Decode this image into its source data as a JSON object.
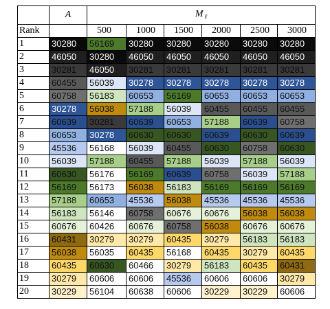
{
  "header": {
    "rank_label": "Rank",
    "col_a": "A",
    "col_m": "M",
    "col_m_sub": "ℓ",
    "levels": [
      "500",
      "1000",
      "1500",
      "2000",
      "2500",
      "3000"
    ]
  },
  "colors": {
    "30280": {
      "bg": "#0b0b0b",
      "fg": "#ffffff"
    },
    "46050": {
      "bg": "#1f1f1f",
      "fg": "#ffffff"
    },
    "30281": {
      "bg": "#3a3a3a",
      "fg": "#0c0c0c"
    },
    "60455": {
      "bg": "#595959",
      "fg": "#111111"
    },
    "30278": {
      "bg": "#2e5597",
      "fg": "#ffffff"
    },
    "60639": {
      "bg": "#2b4f8e",
      "fg": "#111111"
    },
    "60653": {
      "bg": "#8fb0e0",
      "fg": "#111111"
    },
    "56039": {
      "bg": "#dde6f6",
      "fg": "#111111"
    },
    "45536": {
      "bg": "#b6c9ee",
      "fg": "#111111"
    },
    "56169": {
      "bg": "#4c7a2a",
      "fg": "#111111"
    },
    "60630": {
      "bg": "#385622",
      "fg": "#111111"
    },
    "57188": {
      "bg": "#a8cf8a",
      "fg": "#111111"
    },
    "56183": {
      "bg": "#cfe5bf",
      "fg": "#111111"
    },
    "60676": {
      "bg": "#e6f1da",
      "fg": "#111111"
    },
    "60758": {
      "bg": "#6f6f6f",
      "fg": "#111111"
    },
    "60758_alt": {
      "bg": "#6f6f6f",
      "fg": "#111111"
    },
    "56038": {
      "bg": "#c08a0e",
      "fg": "#111111"
    },
    "60431": {
      "bg": "#8f6a12",
      "fg": "#111111"
    },
    "60435": {
      "bg": "#fed96a",
      "fg": "#111111"
    },
    "30279": {
      "bg": "#ffe9a8",
      "fg": "#111111"
    },
    "30229": {
      "bg": "#fff2cc",
      "fg": "#111111"
    },
    "56168": {
      "bg": "#ffffff",
      "fg": "#111111"
    },
    "56176": {
      "bg": "#ffffff",
      "fg": "#111111"
    },
    "56173": {
      "bg": "#ffffff",
      "fg": "#111111"
    },
    "56146": {
      "bg": "#ffffff",
      "fg": "#111111"
    },
    "60426": {
      "bg": "#ffffff",
      "fg": "#111111"
    },
    "56035": {
      "bg": "#ffffff",
      "fg": "#111111"
    },
    "60466": {
      "bg": "#ffffff",
      "fg": "#111111"
    },
    "60606": {
      "bg": "#ffffff",
      "fg": "#111111"
    },
    "56104": {
      "bg": "#ffffff",
      "fg": "#111111"
    },
    "60638": {
      "bg": "#ffffff",
      "fg": "#111111"
    }
  },
  "rows": [
    {
      "rank": "1",
      "a": "30280",
      "m": [
        "56169",
        "30280",
        "30280",
        "30280",
        "30280",
        "30280"
      ]
    },
    {
      "rank": "2",
      "a": "46050",
      "m": [
        "30280",
        "46050",
        "46050",
        "46050",
        "46050",
        "46050"
      ]
    },
    {
      "rank": "3",
      "a": "30281",
      "m": [
        "46050",
        "30281",
        "30281",
        "30281",
        "30281",
        "30281"
      ]
    },
    {
      "rank": "4",
      "a": "60455",
      "m": [
        "56039",
        "30278",
        "30278",
        "30278",
        "30278",
        "30278"
      ]
    },
    {
      "rank": "5",
      "a": "60758",
      "m": [
        "56183",
        "60653",
        "56169",
        "60653",
        "60653",
        "60653"
      ]
    },
    {
      "rank": "6",
      "a": "30278",
      "m": [
        "56038",
        "57188",
        "56039",
        "60455",
        "60455",
        "60455"
      ]
    },
    {
      "rank": "7",
      "a": "60639",
      "m": [
        "30281",
        "60639",
        "60653",
        "57188",
        "60639",
        "60758"
      ]
    },
    {
      "rank": "8",
      "a": "60653",
      "m": [
        "30278",
        "60630",
        "60630",
        "60639",
        "60630",
        "60639"
      ]
    },
    {
      "rank": "9",
      "a": "45536",
      "m": [
        "56168",
        "56039",
        "60455",
        "60630",
        "60758",
        "60630"
      ]
    },
    {
      "rank": "10",
      "a": "56039",
      "m": [
        "57188",
        "60455",
        "57188",
        "56039",
        "57188",
        "56039"
      ]
    },
    {
      "rank": "11",
      "a": "60630",
      "m": [
        "56176",
        "56169",
        "60639",
        "60758",
        "56039",
        "57188"
      ]
    },
    {
      "rank": "12",
      "a": "56169",
      "m": [
        "56173",
        "56038",
        "56183",
        "56169",
        "56169",
        "56169"
      ]
    },
    {
      "rank": "13",
      "a": "57188",
      "m": [
        "60653",
        "45536",
        "56038",
        "45536",
        "45536",
        "45536"
      ]
    },
    {
      "rank": "14",
      "a": "56183",
      "m": [
        "56146",
        "60758",
        "60676",
        "60676",
        "56038",
        "56038"
      ]
    },
    {
      "rank": "15",
      "a": "60676",
      "m": [
        "60426",
        "60676",
        "60758",
        "56038",
        "60676",
        "60676"
      ]
    },
    {
      "rank": "16",
      "a": "60431",
      "m": [
        "30279",
        "30279",
        "60435",
        "30279",
        "56183",
        "56183"
      ]
    },
    {
      "rank": "17",
      "a": "56038",
      "m": [
        "56035",
        "60435",
        "56168",
        "60435",
        "30279",
        "60435"
      ]
    },
    {
      "rank": "18",
      "a": "60435",
      "m": [
        "60630",
        "60466",
        "30279",
        "56183",
        "60435",
        "60431"
      ]
    },
    {
      "rank": "19",
      "a": "30279",
      "m": [
        "60606",
        "60606",
        "45536",
        "60606",
        "60606",
        "30279"
      ]
    },
    {
      "rank": "20",
      "a": "30229",
      "m": [
        "56104",
        "60638",
        "60606",
        "30229",
        "30229",
        "60606"
      ]
    }
  ]
}
